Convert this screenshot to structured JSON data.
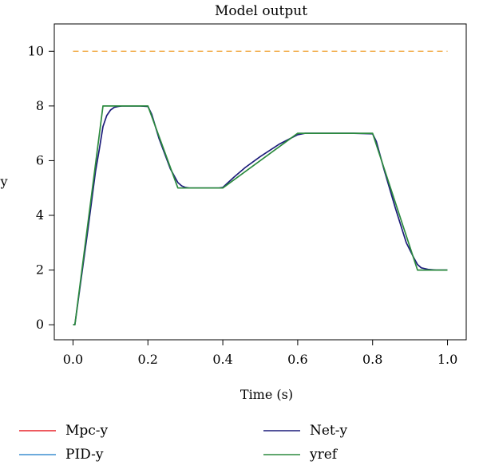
{
  "chart_data": {
    "type": "line",
    "title": "Model output",
    "xlabel": "Time (s)",
    "ylabel": "y",
    "xlim": [
      -0.05,
      1.05
    ],
    "ylim": [
      -0.55,
      11.0
    ],
    "xticks": [
      0.0,
      0.2,
      0.4,
      0.6,
      0.8,
      1.0
    ],
    "xtick_labels": [
      "0.0",
      "0.2",
      "0.4",
      "0.6",
      "0.8",
      "1.0"
    ],
    "yticks": [
      0,
      2,
      4,
      6,
      8,
      10
    ],
    "ytick_labels": [
      "0",
      "2",
      "4",
      "6",
      "8",
      "10"
    ],
    "grid": false,
    "legend_position": "bottom",
    "series": [
      {
        "name": "Mpc-y",
        "color": "#e8232a",
        "x": [],
        "y": []
      },
      {
        "name": "PID-y",
        "color": "#3d8fd1",
        "x": [],
        "y": []
      },
      {
        "name": "Net-y",
        "color": "#1c1c7a",
        "x": [
          0.0,
          0.005,
          0.02,
          0.04,
          0.06,
          0.07,
          0.08,
          0.09,
          0.1,
          0.11,
          0.12,
          0.13,
          0.14,
          0.16,
          0.18,
          0.2,
          0.21,
          0.23,
          0.26,
          0.28,
          0.29,
          0.3,
          0.31,
          0.33,
          0.36,
          0.39,
          0.4,
          0.41,
          0.43,
          0.46,
          0.5,
          0.55,
          0.6,
          0.62,
          0.65,
          0.7,
          0.75,
          0.8,
          0.81,
          0.83,
          0.86,
          0.89,
          0.91,
          0.92,
          0.93,
          0.95,
          0.97,
          1.0
        ],
        "y": [
          0.0,
          0.0,
          1.5,
          3.5,
          5.6,
          6.4,
          7.25,
          7.65,
          7.85,
          7.95,
          7.98,
          8.0,
          8.0,
          8.0,
          8.0,
          7.98,
          7.7,
          6.8,
          5.7,
          5.2,
          5.08,
          5.02,
          5.0,
          5.0,
          5.0,
          5.0,
          5.02,
          5.15,
          5.4,
          5.75,
          6.15,
          6.6,
          6.95,
          7.0,
          7.0,
          7.0,
          7.0,
          6.98,
          6.7,
          5.7,
          4.3,
          3.0,
          2.45,
          2.2,
          2.08,
          2.02,
          2.0,
          2.0
        ]
      },
      {
        "name": "yref",
        "color": "#2b8a3e",
        "x": [
          0.0,
          0.005,
          0.08,
          0.2,
          0.28,
          0.4,
          0.6,
          0.8,
          0.92,
          1.0
        ],
        "y": [
          0.0,
          0.0,
          8.0,
          8.0,
          5.0,
          5.0,
          7.0,
          7.0,
          2.0,
          2.0
        ]
      }
    ],
    "reference_line": {
      "y": 10,
      "x_start": 0.0,
      "x_end": 1.0,
      "color": "#f0a030",
      "style": "dashed"
    }
  }
}
